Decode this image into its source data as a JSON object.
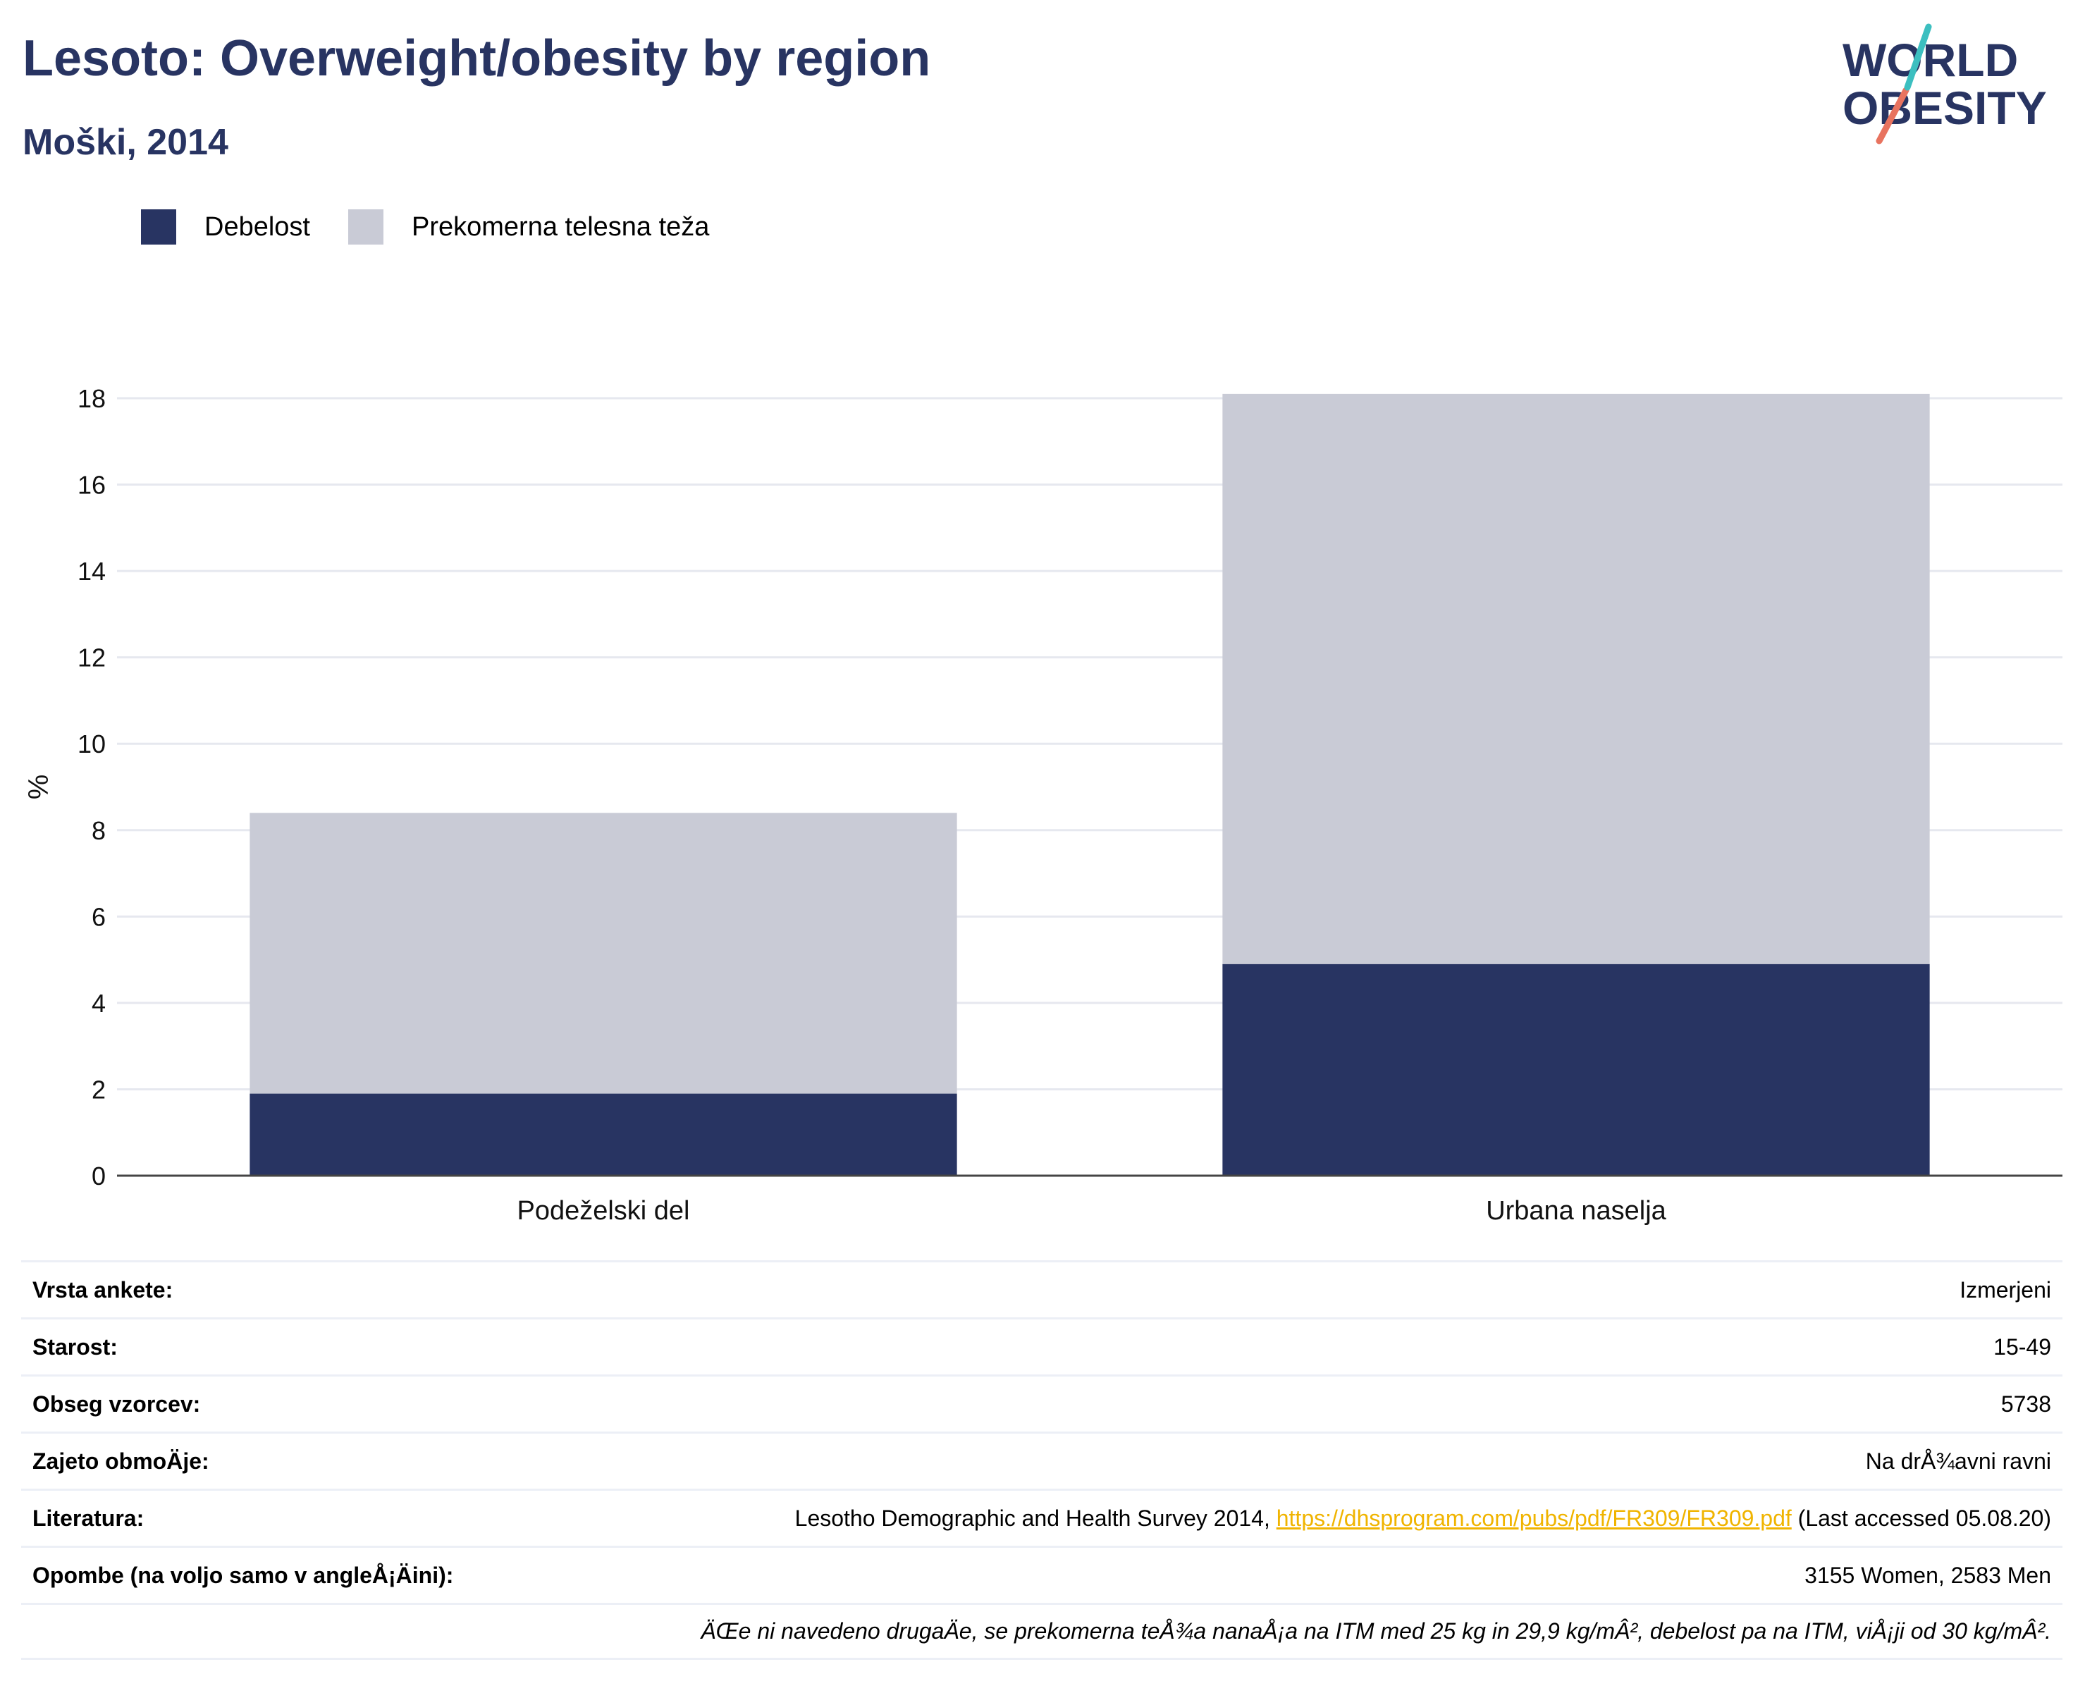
{
  "title": "Lesoto: Overweight/obesity by region",
  "subtitle": "Moški, 2014",
  "logo": {
    "line1": "WORLD",
    "line2": "OBESITY"
  },
  "colors": {
    "obesity": "#283462",
    "overweight": "#c9cbd6",
    "title": "#283462",
    "link": "#f0b400"
  },
  "legend": [
    {
      "label": "Debelost",
      "color": "#283462"
    },
    {
      "label": "Prekomerna telesna teža",
      "color": "#c9cbd6"
    }
  ],
  "chart_data": {
    "type": "bar",
    "stacked": true,
    "categories": [
      "Podeželski del",
      "Urbana naselja"
    ],
    "series": [
      {
        "name": "Debelost",
        "values": [
          1.9,
          4.9
        ]
      },
      {
        "name": "Prekomerna telesna teža",
        "values": [
          6.5,
          13.2
        ]
      }
    ],
    "ylabel": "%",
    "ylim": [
      0,
      18
    ],
    "yticks": [
      0,
      2,
      4,
      6,
      8,
      10,
      12,
      14,
      16,
      18
    ],
    "grid": true,
    "legend_position": "top-left"
  },
  "meta": [
    {
      "key": "Vrsta ankete:",
      "value": "Izmerjeni"
    },
    {
      "key": "Starost:",
      "value": "15-49"
    },
    {
      "key": "Obseg vzorcev:",
      "value": "5738"
    },
    {
      "key": "Zajeto obmoÄje:",
      "value": "Na drÅ¾avni ravni"
    },
    {
      "key": "Literatura:",
      "value_before": "Lesotho Demographic and Health Survey 2014, ",
      "link": "https://dhsprogram.com/pubs/pdf/FR309/FR309.pdf",
      "value_after": " (Last accessed 05.08.20)"
    },
    {
      "key": "Opombe (na voljo samo v angleÅ¡Äini):",
      "value": "3155 Women, 2583 Men"
    }
  ],
  "note": "ÄŒe ni navedeno drugaÄe, se prekomerna teÅ¾a nanaÅ¡a na ITM med 25 kg in 29,9 kg/mÂ², debelost pa na ITM, viÅ¡ji od 30 kg/mÂ²."
}
